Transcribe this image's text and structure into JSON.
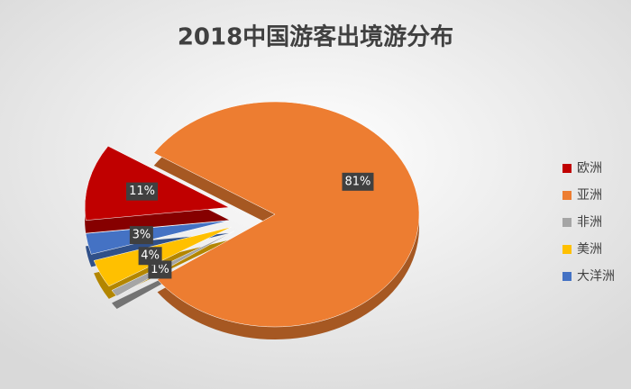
{
  "chart_data": {
    "type": "pie",
    "title": "2018中国游客出境游分布",
    "categories": [
      "欧洲",
      "亚洲",
      "非洲",
      "美洲",
      "大洋洲"
    ],
    "values": [
      11,
      81,
      1,
      4,
      3
    ],
    "value_labels": [
      "11%",
      "81%",
      "1%",
      "4%",
      "3%"
    ],
    "colors": [
      "#c00000",
      "#ed7d31",
      "#a5a5a5",
      "#ffc000",
      "#4472c4"
    ],
    "legend": "right"
  }
}
